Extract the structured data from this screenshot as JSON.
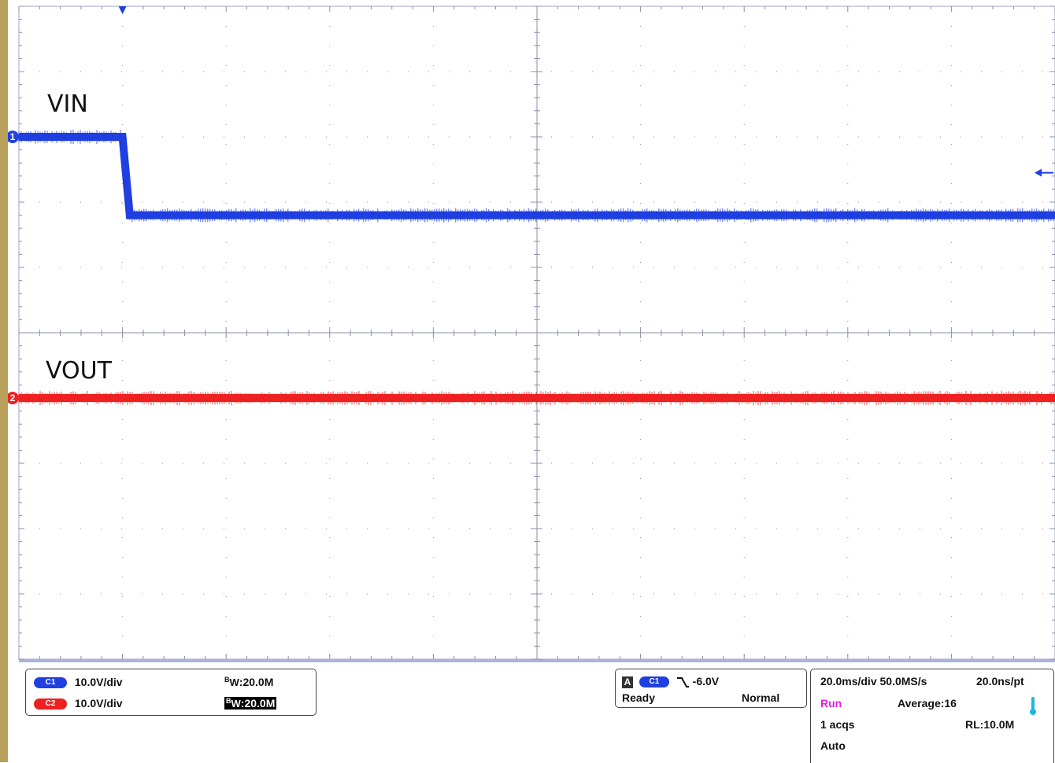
{
  "chart_data": {
    "type": "line",
    "x_divisions": 10,
    "y_divisions": 10,
    "grid": true,
    "series": [
      {
        "name": "VIN",
        "channel": "1",
        "color": "#1f3fe0",
        "x_div": [
          0,
          1.0,
          1.07,
          10
        ],
        "y_div": [
          2.0,
          2.0,
          3.2,
          3.2
        ]
      },
      {
        "name": "VOUT",
        "channel": "2",
        "color": "#ee2020",
        "x_div": [
          0,
          10
        ],
        "y_div": [
          6.0,
          6.0
        ]
      }
    ]
  },
  "channels": [
    {
      "tag": "C1",
      "scale": "10.0V/div",
      "bw_prefix": "B",
      "bw_sub": "W",
      "bw_value": ":20.0M",
      "color": "#1f3fe0"
    },
    {
      "tag": "C2",
      "scale": "10.0V/div",
      "bw_prefix": "B",
      "bw_sub": "W",
      "bw_value": ":20.0M",
      "color": "#ee2020"
    }
  ],
  "trigger": {
    "source_box": "A",
    "source": "C1",
    "level": "-6.0V",
    "status": "Ready",
    "mode": "Normal"
  },
  "acquisition": {
    "timebase": "20.0ms/div",
    "sample_rate": "50.0MS/s",
    "resolution": "20.0ns/pt",
    "state": "Run",
    "average": "Average:16",
    "acqs": "1 acqs",
    "record_length": "RL:10.0M",
    "auto": "Auto"
  },
  "colors": {
    "ch1": "#1f3fe0",
    "ch2": "#ee2020",
    "grid": "#8a8fa8",
    "run": "#e01ee0",
    "thermo": "#1ab8e0"
  }
}
